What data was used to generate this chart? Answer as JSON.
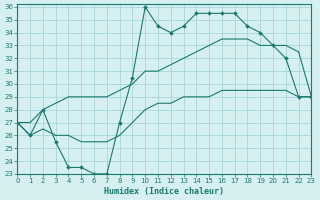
{
  "xlabel": "Humidex (Indice chaleur)",
  "ylabel": "",
  "bg_color": "#d6eff0",
  "grid_color": "#a0d0d8",
  "line_color": "#1a7a6e",
  "xlim": [
    0,
    23
  ],
  "ylim": [
    23,
    36
  ],
  "xticks": [
    0,
    1,
    2,
    3,
    4,
    5,
    6,
    7,
    8,
    9,
    10,
    11,
    12,
    13,
    14,
    15,
    16,
    17,
    18,
    19,
    20,
    21,
    22,
    23
  ],
  "yticks": [
    23,
    24,
    25,
    26,
    27,
    28,
    29,
    30,
    31,
    32,
    33,
    34,
    35,
    36
  ],
  "line1_x": [
    0,
    1,
    2,
    3,
    4,
    5,
    6,
    7,
    8,
    9,
    10,
    11,
    12,
    13,
    14,
    15,
    16,
    17,
    18,
    19,
    20,
    21,
    22,
    23
  ],
  "line1_y": [
    27,
    26,
    28,
    25.5,
    23.5,
    23.5,
    23,
    23,
    27,
    30.5,
    36,
    34.5,
    34,
    34.5,
    35.5,
    35.5,
    35.5,
    35.5,
    34.5,
    34,
    33,
    32,
    29,
    29
  ],
  "line2_x": [
    0,
    1,
    2,
    3,
    4,
    5,
    6,
    7,
    8,
    9,
    10,
    11,
    12,
    13,
    14,
    15,
    16,
    17,
    18,
    19,
    20,
    21,
    22,
    23
  ],
  "line2_y": [
    27,
    27,
    28,
    28.5,
    29,
    29,
    29,
    29,
    29.5,
    30,
    31,
    31,
    31.5,
    32,
    32.5,
    33,
    33.5,
    33.5,
    33.5,
    33,
    33,
    33,
    32.5,
    29
  ],
  "line3_x": [
    0,
    1,
    2,
    3,
    4,
    5,
    6,
    7,
    8,
    9,
    10,
    11,
    12,
    13,
    14,
    15,
    16,
    17,
    18,
    19,
    20,
    21,
    22,
    23
  ],
  "line3_y": [
    27,
    26,
    26.5,
    26,
    26,
    25.5,
    25.5,
    25.5,
    26,
    27,
    28,
    28.5,
    28.5,
    29,
    29,
    29,
    29.5,
    29.5,
    29.5,
    29.5,
    29.5,
    29.5,
    29,
    29
  ]
}
